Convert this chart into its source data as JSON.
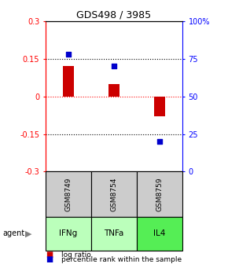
{
  "title": "GDS498 / 3985",
  "samples": [
    "GSM8749",
    "GSM8754",
    "GSM8759"
  ],
  "agents": [
    "IFNg",
    "TNFa",
    "IL4"
  ],
  "log_ratio": [
    0.12,
    0.05,
    -0.08
  ],
  "percentile": [
    78,
    70,
    20
  ],
  "ylim_left": [
    -0.3,
    0.3
  ],
  "ylim_right": [
    0,
    100
  ],
  "yticks_left": [
    -0.3,
    -0.15,
    0,
    0.15,
    0.3
  ],
  "yticks_right": [
    0,
    25,
    50,
    75,
    100
  ],
  "ytick_labels_left": [
    "-0.3",
    "-0.15",
    "0",
    "0.15",
    "0.3"
  ],
  "ytick_labels_right": [
    "0",
    "25",
    "50",
    "75",
    "100%"
  ],
  "hlines_black": [
    0.15,
    -0.15
  ],
  "bar_color": "#cc0000",
  "dot_color": "#0000cc",
  "agent_colors": [
    "#bbffbb",
    "#bbffbb",
    "#55ee55"
  ],
  "sample_bg_color": "#cccccc",
  "bar_width": 0.25,
  "dot_size": 25,
  "legend_bar_label": "log ratio",
  "legend_dot_label": "percentile rank within the sample",
  "title_fontsize": 9,
  "tick_fontsize": 7,
  "label_fontsize": 7
}
